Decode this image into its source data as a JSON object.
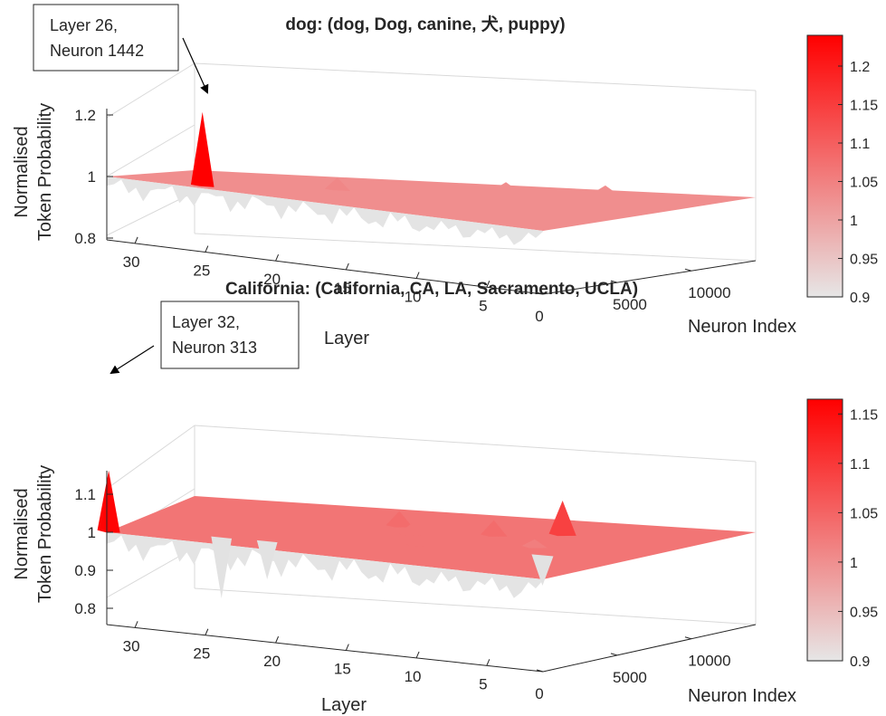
{
  "chart_data": [
    {
      "type": "surface3d",
      "title": "dog: (dog, Dog, canine, 犬, puppy)",
      "xlabel": "Layer",
      "ylabel": "Neuron Index",
      "zlabel": [
        "Normalised",
        "Token Probability"
      ],
      "x_ticks": [
        "30",
        "25",
        "20",
        "15",
        "10",
        "5"
      ],
      "x_tick_values": [
        30,
        25,
        20,
        15,
        10,
        5
      ],
      "y_ticks": [
        "0",
        "5000",
        "10000"
      ],
      "y_tick_values": [
        0,
        5000,
        10000
      ],
      "z_ticks": [
        "0.8",
        "1",
        "1.2"
      ],
      "z_tick_values": [
        0.8,
        1.0,
        1.2
      ],
      "xlim": [
        1,
        32
      ],
      "ylim": [
        0,
        14336
      ],
      "zlim": [
        0.75,
        1.25
      ],
      "baseline": 1.0,
      "peaks": [
        {
          "layer": 26,
          "neuron": 1442,
          "value": 1.24
        },
        {
          "layer": 20,
          "neuron": 6500,
          "value": 1.04
        },
        {
          "layer": 13,
          "neuron": 11500,
          "value": 1.03
        },
        {
          "layer": 8,
          "neuron": 12500,
          "value": 1.03
        }
      ],
      "colorbar": {
        "ticks": [
          "0.9",
          "0.95",
          "1",
          "1.05",
          "1.1",
          "1.15",
          "1.2"
        ],
        "tick_values": [
          0.9,
          0.95,
          1.0,
          1.05,
          1.1,
          1.15,
          1.2
        ],
        "range": [
          0.9,
          1.24
        ],
        "colors": [
          "#e6e6e6",
          "#ff0000"
        ]
      },
      "annotation": {
        "lines": [
          "Layer 26,",
          "Neuron 1442"
        ]
      }
    },
    {
      "type": "surface3d",
      "title": "California: (California, CA, LA, Sacramento, UCLA)",
      "xlabel": "Layer",
      "ylabel": "Neuron Index",
      "zlabel": [
        "Normalised",
        "Token Probability"
      ],
      "x_ticks": [
        "30",
        "25",
        "20",
        "15",
        "10",
        "5"
      ],
      "x_tick_values": [
        30,
        25,
        20,
        15,
        10,
        5
      ],
      "y_ticks": [
        "0",
        "5000",
        "10000"
      ],
      "y_tick_values": [
        0,
        5000,
        10000
      ],
      "z_ticks": [
        "0.8",
        "0.9",
        "1",
        "1.1"
      ],
      "z_tick_values": [
        0.8,
        0.9,
        1.0,
        1.1
      ],
      "xlim": [
        1,
        32
      ],
      "ylim": [
        0,
        14336
      ],
      "zlim": [
        0.78,
        1.17
      ],
      "baseline": 1.0,
      "peaks": [
        {
          "layer": 32,
          "neuron": 313,
          "value": 1.16
        },
        {
          "layer": 9,
          "neuron": 10500,
          "value": 1.09
        },
        {
          "layer": 12,
          "neuron": 9000,
          "value": 1.04
        },
        {
          "layer": 18,
          "neuron": 9500,
          "value": 1.04
        },
        {
          "layer": 16,
          "neuron": 7500,
          "value": 1.03
        },
        {
          "layer": 14,
          "neuron": 5000,
          "value": 1.03
        },
        {
          "layer": 8,
          "neuron": 7000,
          "value": 1.02
        }
      ],
      "dips": [
        {
          "layer": 25,
          "neuron": 2000,
          "value": 0.84
        },
        {
          "layer": 22,
          "neuron": 2200,
          "value": 0.9
        },
        {
          "layer": 6,
          "neuron": 5200,
          "value": 0.92
        }
      ],
      "colorbar": {
        "ticks": [
          "0.9",
          "0.95",
          "1",
          "1.05",
          "1.1",
          "1.15"
        ],
        "tick_values": [
          0.9,
          0.95,
          1.0,
          1.05,
          1.1,
          1.15
        ],
        "range": [
          0.9,
          1.165
        ],
        "colors": [
          "#e6e6e6",
          "#ff0000"
        ]
      },
      "annotation": {
        "lines": [
          "Layer 32,",
          "Neuron 313"
        ]
      }
    }
  ]
}
